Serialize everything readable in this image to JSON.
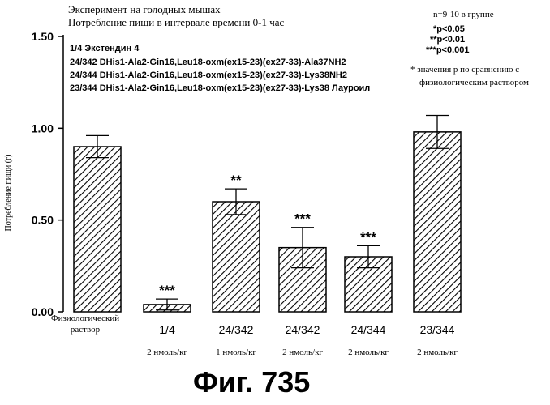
{
  "header": {
    "line1": "Эксперимент на голодных мышах",
    "line2": "Потребление пищи в интервале времени 0-1 час"
  },
  "notes": {
    "n": "n=9-10 в группе",
    "sig1": "*p<0.05",
    "sig2": "**p<0.01",
    "sig3": "***p<0.001",
    "cmp1": "* значения p по сравнению с",
    "cmp2": "физиологическим раствором"
  },
  "legend": [
    "1/4 Экстендин 4",
    "24/342 DHis1-Ala2-Gin16,Leu18-oxm(ex15-23)(ex27-33)-Ala37NH2",
    "24/344 DHis1-Ala2-Gin16,Leu18-oxm(ex15-23)(ex27-33)-Lys38NH2",
    "23/344 DHis1-Ala2-Gin16,Leu18-oxm(ex15-23)(ex27-33)-Lys38 Лауроил"
  ],
  "figure_caption": "Фиг.  735",
  "chart_data": {
    "type": "bar",
    "ylabel": "Потребление пищи (г)",
    "ylim": [
      0,
      1.5
    ],
    "yticks": [
      "0.00",
      "0.50",
      "1.00",
      "1.50"
    ],
    "categories": [
      "Физиологический раствор",
      "1/4",
      "24/342",
      "24/342",
      "24/344",
      "23/344"
    ],
    "category_lines": [
      [
        "Физиологический",
        "раствор"
      ],
      [
        "1/4"
      ],
      [
        "24/342"
      ],
      [
        "24/342"
      ],
      [
        "24/344"
      ],
      [
        "23/344"
      ]
    ],
    "doses": [
      "",
      "2 нмоль/кг",
      "1 нмоль/кг",
      "2 нмоль/кг",
      "2 нмоль/кг",
      "2 нмоль/кг"
    ],
    "values": [
      0.9,
      0.04,
      0.6,
      0.35,
      0.3,
      0.98
    ],
    "errors": [
      0.06,
      0.03,
      0.07,
      0.11,
      0.06,
      0.09
    ],
    "significance": [
      "",
      "***",
      "**",
      "***",
      "***",
      ""
    ],
    "fill": "diagonal-hatch",
    "colors": {
      "bar_stroke": "#000000",
      "hatch": "#000000",
      "background": "#ffffff"
    }
  }
}
